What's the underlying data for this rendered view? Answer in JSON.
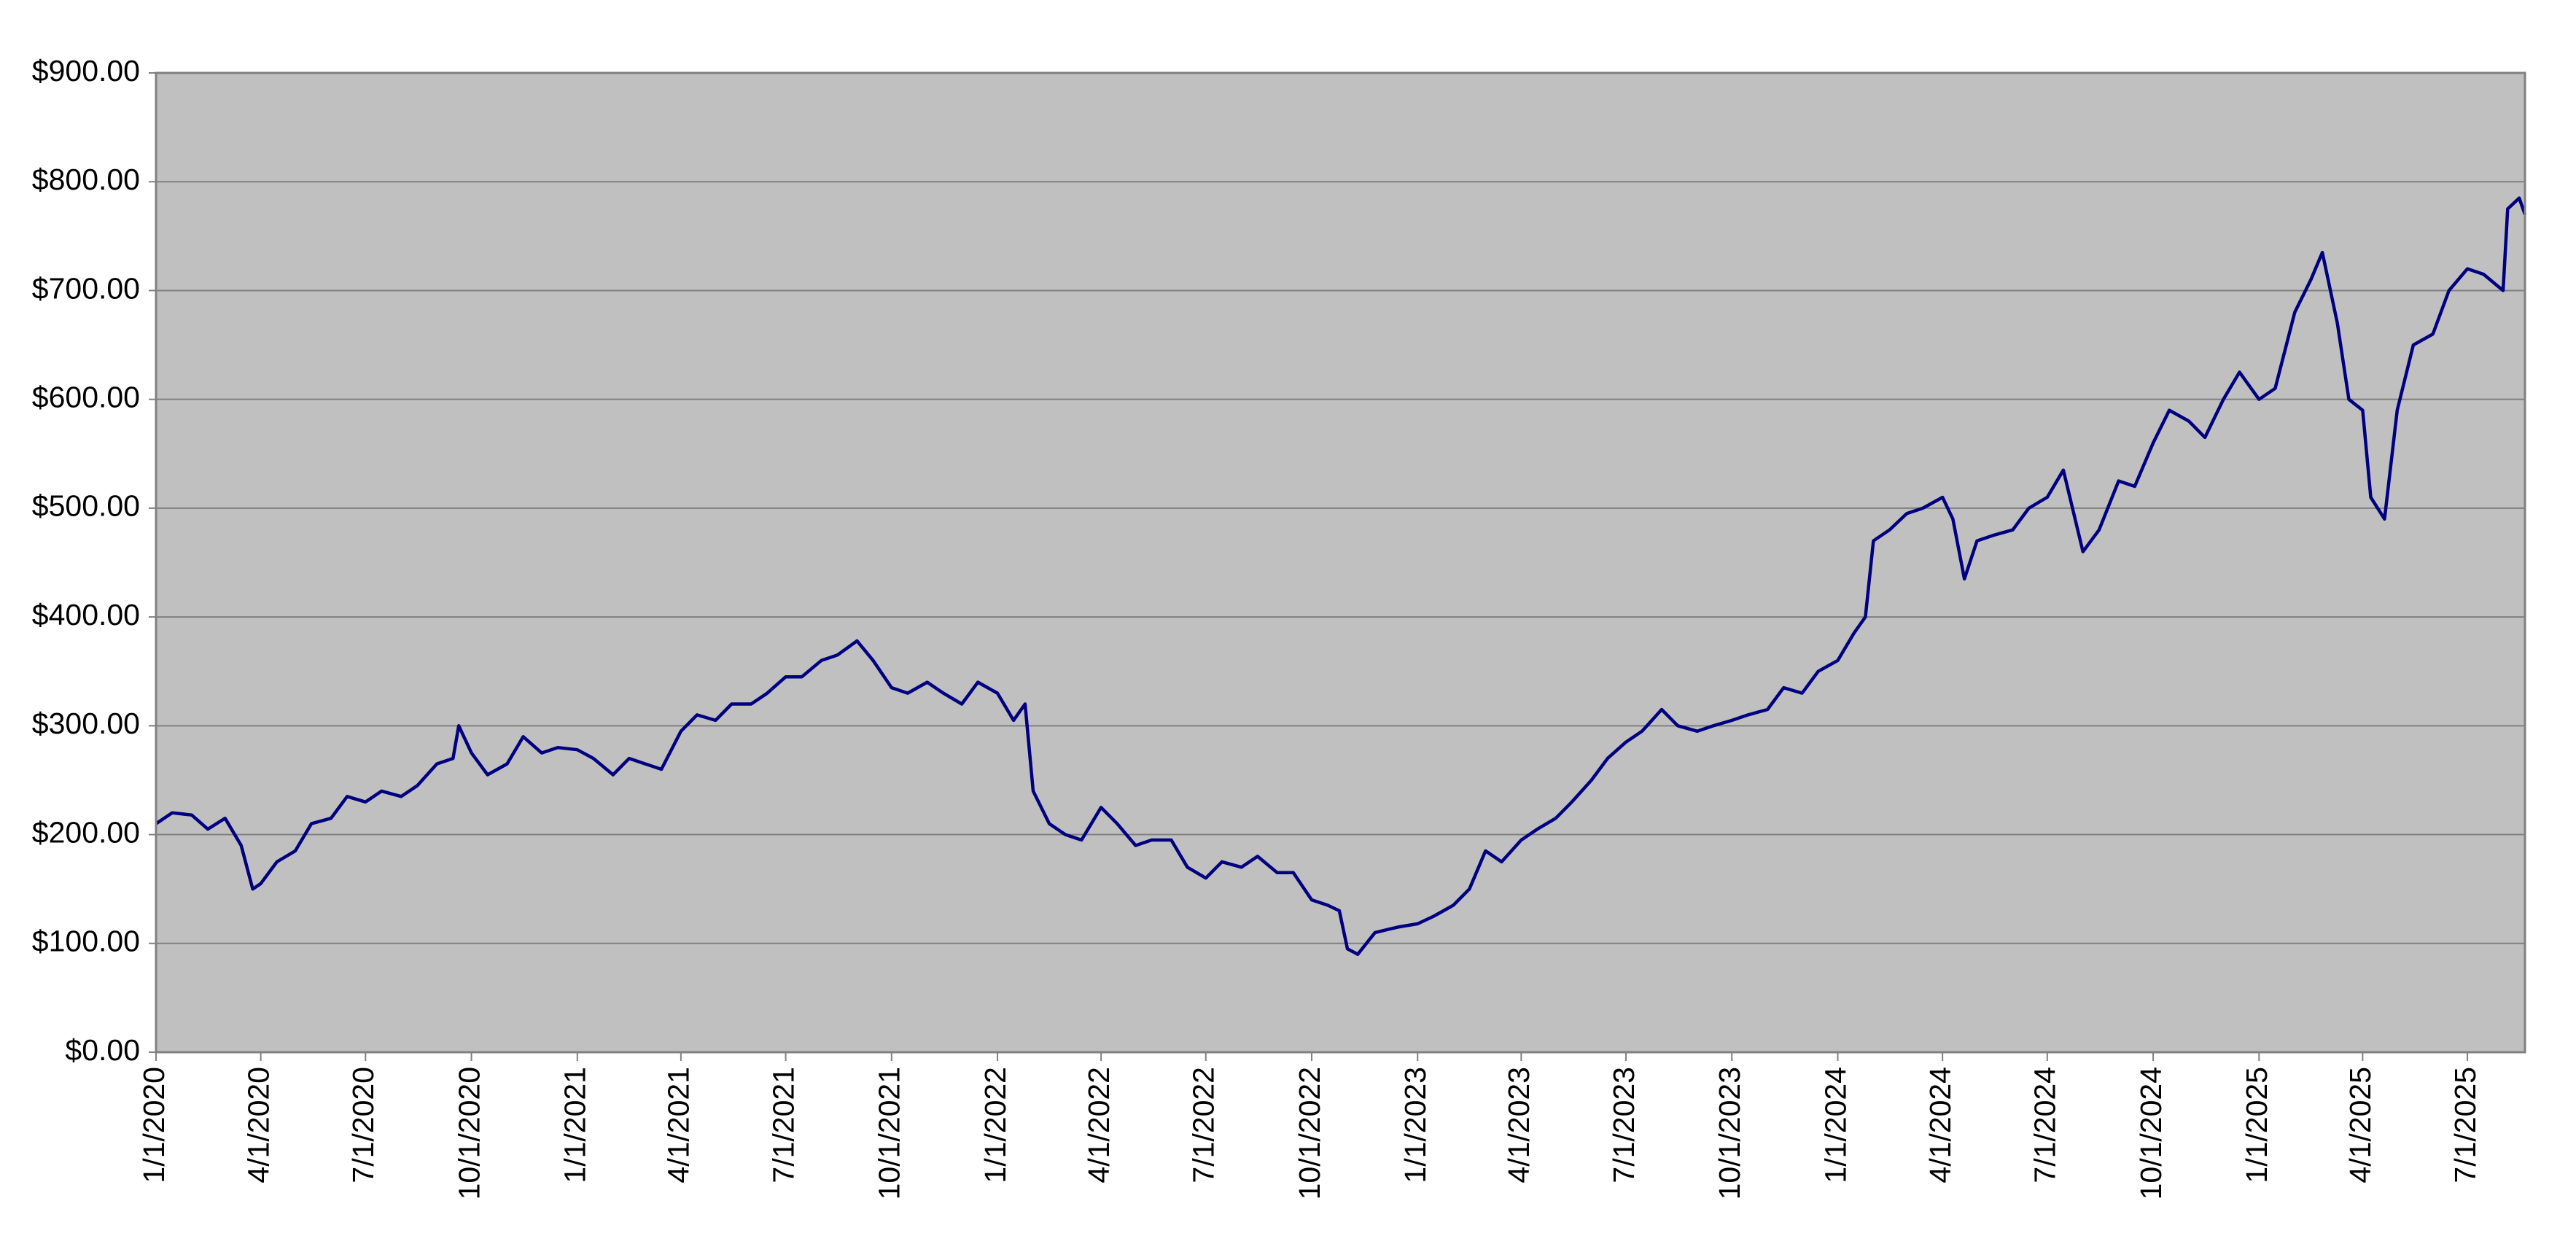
{
  "chart_data": {
    "type": "line",
    "color": "#000080",
    "grid": true,
    "xlim": [
      "1/1/2020",
      "8/20/2025"
    ],
    "xticks": [
      "1/1/2020",
      "4/1/2020",
      "7/1/2020",
      "10/1/2020",
      "1/1/2021",
      "4/1/2021",
      "7/1/2021",
      "10/1/2021",
      "1/1/2022",
      "4/1/2022",
      "7/1/2022",
      "10/1/2022",
      "1/1/2023",
      "4/1/2023",
      "7/1/2023",
      "10/1/2023",
      "1/1/2024",
      "4/1/2024",
      "7/1/2024",
      "10/1/2024",
      "1/1/2025",
      "4/1/2025",
      "7/1/2025"
    ],
    "ylim": [
      0,
      900
    ],
    "yticks": [
      {
        "value": 0,
        "label": "$0.00"
      },
      {
        "value": 100,
        "label": "$100.00"
      },
      {
        "value": 200,
        "label": "$200.00"
      },
      {
        "value": 300,
        "label": "$300.00"
      },
      {
        "value": 400,
        "label": "$400.00"
      },
      {
        "value": 500,
        "label": "$500.00"
      },
      {
        "value": 600,
        "label": "$600.00"
      },
      {
        "value": 700,
        "label": "$700.00"
      },
      {
        "value": 800,
        "label": "$800.00"
      },
      {
        "value": 900,
        "label": "$900.00"
      }
    ],
    "x": [
      "1/1/2020",
      "1/15/2020",
      "2/1/2020",
      "2/15/2020",
      "3/1/2020",
      "3/15/2020",
      "3/25/2020",
      "4/1/2020",
      "4/15/2020",
      "5/1/2020",
      "5/15/2020",
      "6/1/2020",
      "6/15/2020",
      "7/1/2020",
      "7/15/2020",
      "8/1/2020",
      "8/15/2020",
      "9/1/2020",
      "9/15/2020",
      "9/20/2020",
      "10/1/2020",
      "10/15/2020",
      "11/1/2020",
      "11/15/2020",
      "12/1/2020",
      "12/15/2020",
      "1/1/2021",
      "1/15/2021",
      "2/1/2021",
      "2/15/2021",
      "3/1/2021",
      "3/15/2021",
      "4/1/2021",
      "4/15/2021",
      "5/1/2021",
      "5/15/2021",
      "6/1/2021",
      "6/15/2021",
      "7/1/2021",
      "7/15/2021",
      "8/1/2021",
      "8/15/2021",
      "9/1/2021",
      "9/15/2021",
      "10/1/2021",
      "10/15/2021",
      "11/1/2021",
      "11/15/2021",
      "12/1/2021",
      "12/15/2021",
      "1/1/2022",
      "1/15/2022",
      "1/25/2022",
      "2/1/2022",
      "2/15/2022",
      "3/1/2022",
      "3/15/2022",
      "4/1/2022",
      "4/15/2022",
      "5/1/2022",
      "5/15/2022",
      "6/1/2022",
      "6/15/2022",
      "7/1/2022",
      "7/15/2022",
      "8/1/2022",
      "8/15/2022",
      "9/1/2022",
      "9/15/2022",
      "10/1/2022",
      "10/15/2022",
      "10/25/2022",
      "11/1/2022",
      "11/10/2022",
      "11/25/2022",
      "12/15/2022",
      "1/1/2023",
      "1/15/2023",
      "2/1/2023",
      "2/15/2023",
      "3/1/2023",
      "3/15/2023",
      "4/1/2023",
      "4/15/2023",
      "5/1/2023",
      "5/15/2023",
      "6/1/2023",
      "6/15/2023",
      "7/1/2023",
      "7/15/2023",
      "8/1/2023",
      "8/15/2023",
      "9/1/2023",
      "9/15/2023",
      "10/1/2023",
      "10/15/2023",
      "11/1/2023",
      "11/15/2023",
      "12/1/2023",
      "12/15/2023",
      "1/1/2024",
      "1/15/2024",
      "1/25/2024",
      "2/1/2024",
      "2/15/2024",
      "3/1/2024",
      "3/15/2024",
      "4/1/2024",
      "4/10/2024",
      "4/20/2024",
      "5/1/2024",
      "5/15/2024",
      "6/1/2024",
      "6/15/2024",
      "7/1/2024",
      "7/15/2024",
      "8/1/2024",
      "8/15/2024",
      "9/1/2024",
      "9/15/2024",
      "10/1/2024",
      "10/15/2024",
      "11/1/2024",
      "11/15/2024",
      "12/1/2024",
      "12/15/2024",
      "1/1/2025",
      "1/15/2025",
      "2/1/2025",
      "2/15/2025",
      "2/25/2025",
      "3/10/2025",
      "3/20/2025",
      "4/1/2025",
      "4/8/2025",
      "4/20/2025",
      "5/1/2025",
      "5/15/2025",
      "6/1/2025",
      "6/15/2025",
      "7/1/2025",
      "7/15/2025",
      "8/1/2025",
      "8/5/2025",
      "8/15/2025",
      "8/20/2025"
    ],
    "values": [
      210,
      220,
      218,
      205,
      215,
      190,
      150,
      155,
      175,
      185,
      210,
      215,
      235,
      230,
      240,
      235,
      245,
      265,
      270,
      300,
      275,
      255,
      265,
      290,
      275,
      280,
      278,
      270,
      255,
      270,
      265,
      260,
      295,
      310,
      305,
      320,
      320,
      330,
      345,
      345,
      360,
      365,
      378,
      360,
      335,
      330,
      340,
      330,
      320,
      340,
      330,
      305,
      320,
      240,
      210,
      200,
      195,
      225,
      210,
      190,
      195,
      195,
      170,
      160,
      175,
      170,
      180,
      165,
      165,
      140,
      135,
      130,
      95,
      90,
      110,
      115,
      118,
      125,
      135,
      150,
      185,
      175,
      195,
      205,
      215,
      230,
      250,
      270,
      285,
      295,
      315,
      300,
      295,
      300,
      305,
      310,
      315,
      335,
      330,
      350,
      360,
      385,
      400,
      470,
      480,
      495,
      500,
      510,
      490,
      435,
      470,
      475,
      480,
      500,
      510,
      535,
      460,
      480,
      525,
      520,
      560,
      590,
      580,
      565,
      600,
      625,
      600,
      610,
      680,
      710,
      735,
      670,
      600,
      590,
      510,
      490,
      590,
      650,
      660,
      700,
      720,
      715,
      700,
      775,
      785,
      770
    ]
  }
}
